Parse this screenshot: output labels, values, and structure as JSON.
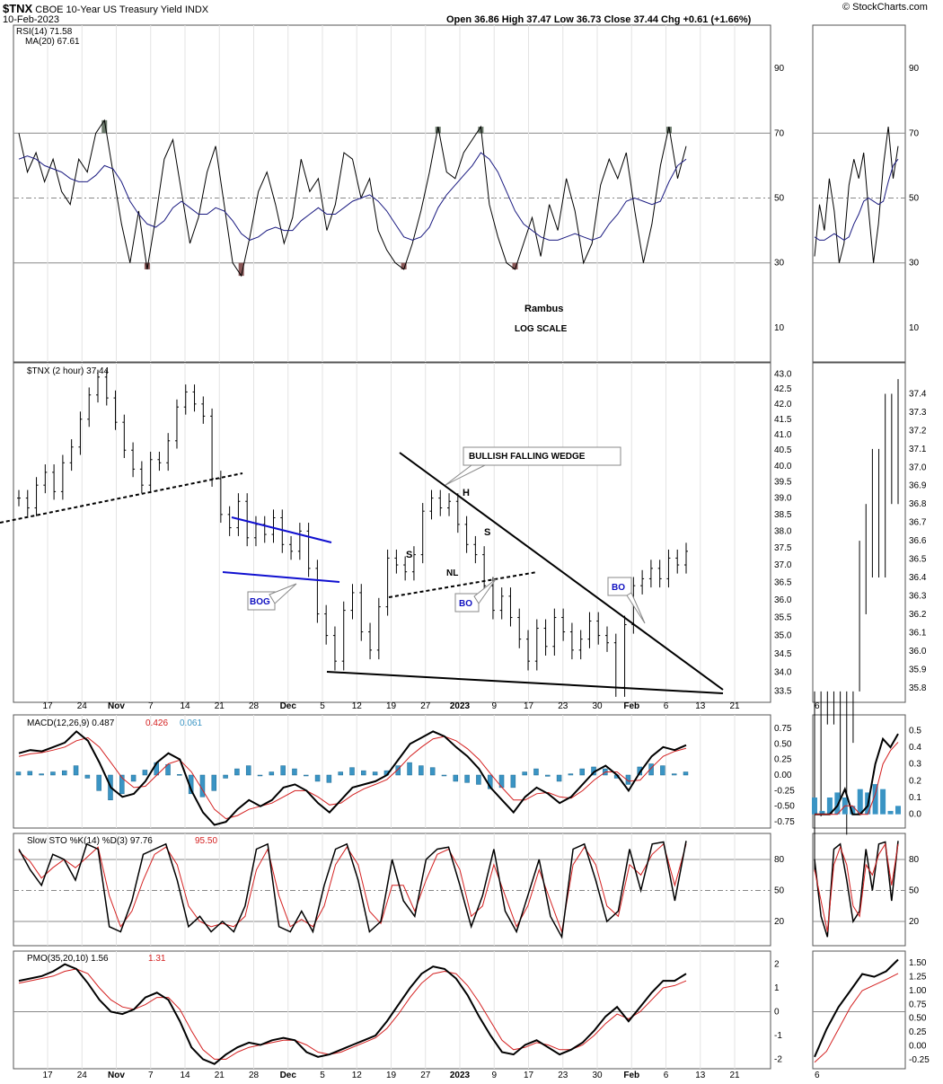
{
  "header": {
    "symbol": "$TNX",
    "name": "CBOE 10-Year US Treasury Yield",
    "exchange": "INDX",
    "date": "10-Feb-2023",
    "ohlc": "Open 36.86   High 37.47   Low 36.73   Close 37.44   Chg +0.61 (+1.66%)",
    "brand": "© StockCharts.com"
  },
  "annotations": {
    "author": "Rambus",
    "scale_note": "LOG SCALE",
    "wedge": "BULLISH FALLING WEDGE",
    "bog": "BOG",
    "bo1": "BO",
    "bo2": "BO",
    "head": "H",
    "shoulder_left": "S",
    "shoulder_right": "S",
    "neckline": "NL"
  },
  "colors": {
    "price": "#000000",
    "signal": "#d42020",
    "histogram": "#3a94c4",
    "ma_rsi": "#1a1a80",
    "channel": "#1010d0",
    "overbought_fill": "#6b7a6b",
    "oversold_fill": "#8a5858",
    "guide": "#888888"
  },
  "xaxis": {
    "labels": [
      "17",
      "24",
      "Nov",
      "7",
      "14",
      "21",
      "28",
      "Dec",
      "5",
      "12",
      "19",
      "27",
      "2023",
      "9",
      "17",
      "23",
      "30",
      "Feb",
      "6",
      "13",
      "21"
    ],
    "right_label": "6"
  },
  "chart_data": [
    {
      "type": "line",
      "title": "RSI(14) 71.58",
      "legend": [
        "RSI(14) 71.58",
        "MA(20) 67.61"
      ],
      "ylim": [
        0,
        100
      ],
      "yticks": [
        "90",
        "70",
        "50",
        "30",
        "10"
      ],
      "reference_lines": [
        70,
        50,
        30
      ],
      "series": [
        {
          "name": "RSI(14)",
          "values": [
            70,
            58,
            64,
            55,
            62,
            52,
            48,
            62,
            58,
            70,
            74,
            58,
            42,
            30,
            46,
            28,
            44,
            62,
            68,
            52,
            36,
            44,
            58,
            66,
            48,
            30,
            26,
            38,
            52,
            58,
            48,
            36,
            44,
            62,
            52,
            56,
            40,
            48,
            64,
            62,
            50,
            56,
            40,
            34,
            30,
            28,
            36,
            46,
            58,
            72,
            58,
            56,
            64,
            68,
            72,
            48,
            38,
            30,
            28,
            36,
            44,
            32,
            48,
            40,
            56,
            46,
            30,
            36,
            54,
            62,
            56,
            64,
            46,
            30,
            42,
            60,
            72,
            56,
            66
          ]
        },
        {
          "name": "MA(20)",
          "values": [
            62,
            63,
            62,
            60,
            59,
            58,
            56,
            55,
            55,
            57,
            60,
            59,
            55,
            49,
            45,
            42,
            41,
            43,
            47,
            49,
            47,
            45,
            45,
            47,
            46,
            43,
            39,
            37,
            38,
            40,
            41,
            40,
            40,
            43,
            45,
            47,
            45,
            45,
            47,
            49,
            50,
            51,
            49,
            46,
            42,
            38,
            37,
            38,
            41,
            47,
            51,
            54,
            57,
            60,
            64,
            62,
            58,
            52,
            46,
            42,
            40,
            38,
            37,
            37,
            38,
            39,
            38,
            37,
            38,
            42,
            45,
            49,
            50,
            49,
            48,
            49,
            55,
            60,
            62
          ]
        }
      ]
    },
    {
      "type": "line",
      "title": "$TNX (2 hour) 37.44",
      "legend": [
        "$TNX (2 hour) 37.44"
      ],
      "yscale": "log",
      "ylim": [
        33.3,
        43.2
      ],
      "yticks": [
        "43.0",
        "42.5",
        "42.0",
        "41.5",
        "41.0",
        "40.5",
        "40.0",
        "39.5",
        "39.0",
        "38.5",
        "38.0",
        "37.5",
        "37.0",
        "36.5",
        "36.0",
        "35.5",
        "35.0",
        "34.5",
        "34.0",
        "33.5"
      ],
      "right_yticks": [
        "37.4",
        "37.3",
        "37.2",
        "37.1",
        "37.0",
        "36.9",
        "36.8",
        "36.7",
        "36.6",
        "36.5",
        "36.4",
        "36.3",
        "36.2",
        "36.1",
        "36.0",
        "35.9",
        "35.8"
      ],
      "series": [
        {
          "name": "$TNX",
          "values": [
            39.0,
            38.7,
            39.4,
            39.8,
            39.2,
            40.1,
            40.6,
            41.5,
            42.3,
            42.9,
            42.2,
            41.4,
            40.5,
            39.9,
            39.4,
            40.2,
            40.1,
            40.8,
            41.9,
            42.4,
            42.0,
            41.6,
            39.6,
            38.5,
            38.1,
            38.9,
            37.8,
            38.2,
            37.9,
            38.4,
            37.6,
            37.4,
            38.0,
            36.9,
            35.6,
            35.0,
            34.3,
            35.7,
            36.2,
            35.1,
            34.6,
            35.8,
            37.2,
            37.0,
            36.8,
            37.3,
            38.6,
            39.0,
            38.7,
            38.9,
            38.2,
            37.6,
            37.3,
            36.4,
            35.7,
            36.1,
            35.5,
            34.9,
            34.3,
            35.2,
            34.7,
            35.5,
            35.1,
            34.6,
            34.9,
            35.4,
            35.0,
            34.8,
            33.6,
            35.3,
            36.4,
            36.6,
            36.9,
            36.6,
            37.2,
            37.0,
            37.4
          ]
        }
      ]
    },
    {
      "type": "line",
      "title": "MACD(12,26,9) 0.487, 0.426, 0.061",
      "legend": [
        "MACD(12,26,9) 0.487",
        "0.426",
        "0.061"
      ],
      "ylim": [
        -0.85,
        0.85
      ],
      "yticks": [
        "0.75",
        "0.50",
        "0.25",
        "0.00",
        "-0.25",
        "-0.50",
        "-0.75"
      ],
      "right_yticks": [
        "0.5",
        "0.4",
        "0.3",
        "0.2",
        "0.1",
        "0.0"
      ],
      "series": [
        {
          "name": "MACD",
          "values": [
            0.35,
            0.4,
            0.38,
            0.45,
            0.52,
            0.7,
            0.55,
            0.2,
            -0.2,
            -0.35,
            -0.3,
            -0.1,
            0.2,
            0.35,
            0.25,
            -0.25,
            -0.6,
            -0.8,
            -0.75,
            -0.55,
            -0.4,
            -0.5,
            -0.4,
            -0.2,
            -0.15,
            -0.25,
            -0.45,
            -0.6,
            -0.4,
            -0.2,
            -0.15,
            -0.1,
            0.0,
            0.25,
            0.5,
            0.6,
            0.7,
            0.62,
            0.45,
            0.3,
            0.1,
            -0.2,
            -0.4,
            -0.6,
            -0.35,
            -0.2,
            -0.3,
            -0.45,
            -0.35,
            -0.15,
            0.05,
            0.15,
            0.0,
            -0.25,
            0.05,
            0.3,
            0.45,
            0.4,
            0.48
          ]
        },
        {
          "name": "Signal",
          "values": [
            0.3,
            0.34,
            0.36,
            0.4,
            0.45,
            0.55,
            0.6,
            0.45,
            0.2,
            -0.05,
            -0.2,
            -0.18,
            0.0,
            0.18,
            0.24,
            0.05,
            -0.25,
            -0.55,
            -0.7,
            -0.65,
            -0.55,
            -0.5,
            -0.45,
            -0.35,
            -0.25,
            -0.25,
            -0.35,
            -0.48,
            -0.45,
            -0.32,
            -0.22,
            -0.15,
            -0.07,
            0.1,
            0.3,
            0.45,
            0.58,
            0.62,
            0.55,
            0.42,
            0.25,
            0.02,
            -0.2,
            -0.4,
            -0.4,
            -0.3,
            -0.28,
            -0.35,
            -0.37,
            -0.25,
            -0.08,
            0.05,
            0.05,
            -0.1,
            -0.08,
            0.12,
            0.3,
            0.38,
            0.43
          ]
        },
        {
          "name": "Histogram",
          "values": [
            0.05,
            0.06,
            0.02,
            0.05,
            0.07,
            0.15,
            -0.05,
            -0.25,
            -0.4,
            -0.3,
            -0.1,
            0.08,
            0.2,
            0.17,
            0.01,
            -0.3,
            -0.35,
            -0.25,
            -0.05,
            0.1,
            0.15,
            0.0,
            0.05,
            0.15,
            0.1,
            0.0,
            -0.1,
            -0.12,
            0.05,
            0.12,
            0.07,
            0.05,
            0.07,
            0.15,
            0.2,
            0.15,
            0.12,
            0.0,
            -0.1,
            -0.12,
            -0.15,
            -0.22,
            -0.2,
            -0.2,
            0.05,
            0.1,
            -0.02,
            -0.1,
            0.02,
            0.1,
            0.13,
            0.1,
            -0.05,
            -0.15,
            0.13,
            0.18,
            0.15,
            0.02,
            0.05
          ]
        }
      ]
    },
    {
      "type": "line",
      "title": "Slow STO %K(14) %D(3) 97.76, 95.50",
      "legend": [
        "Slow STO %K(14) %D(3) 97.76",
        "95.50"
      ],
      "ylim": [
        0,
        100
      ],
      "yticks": [
        "80",
        "50",
        "20"
      ],
      "reference_lines": [
        80,
        50,
        20
      ],
      "series": [
        {
          "name": "%K",
          "values": [
            90,
            70,
            55,
            85,
            80,
            60,
            95,
            90,
            15,
            10,
            40,
            85,
            90,
            95,
            60,
            15,
            25,
            10,
            20,
            10,
            35,
            90,
            95,
            15,
            10,
            30,
            10,
            55,
            90,
            95,
            60,
            10,
            20,
            80,
            40,
            25,
            80,
            90,
            92,
            55,
            15,
            45,
            90,
            30,
            10,
            45,
            80,
            25,
            5,
            90,
            95,
            60,
            20,
            30,
            90,
            50,
            95,
            97,
            40,
            98
          ]
        },
        {
          "name": "%D",
          "values": [
            88,
            78,
            62,
            72,
            80,
            72,
            82,
            92,
            45,
            15,
            30,
            60,
            85,
            92,
            75,
            35,
            20,
            15,
            18,
            15,
            25,
            70,
            90,
            45,
            15,
            22,
            15,
            35,
            75,
            92,
            75,
            30,
            18,
            55,
            55,
            30,
            60,
            85,
            90,
            70,
            25,
            35,
            75,
            45,
            15,
            35,
            70,
            40,
            10,
            75,
            92,
            75,
            35,
            25,
            75,
            65,
            85,
            95,
            55,
            95
          ]
        }
      ]
    },
    {
      "type": "line",
      "title": "PMO(35,20,10) 1.56, 1.31",
      "legend": [
        "PMO(35,20,10) 1.56",
        "1.31"
      ],
      "ylim": [
        -2.4,
        2.4
      ],
      "yticks": [
        "2",
        "1",
        "0",
        "-1",
        "-2"
      ],
      "right_yticks": [
        "1.50",
        "1.25",
        "1.00",
        "0.75",
        "0.50",
        "0.25",
        "0.00",
        "-0.25"
      ],
      "series": [
        {
          "name": "PMO",
          "values": [
            1.3,
            1.4,
            1.5,
            1.7,
            2.0,
            1.8,
            1.2,
            0.5,
            0.0,
            -0.1,
            0.1,
            0.6,
            0.8,
            0.5,
            -0.4,
            -1.5,
            -2.0,
            -2.2,
            -1.8,
            -1.5,
            -1.3,
            -1.4,
            -1.2,
            -1.1,
            -1.2,
            -1.7,
            -1.9,
            -1.8,
            -1.6,
            -1.4,
            -1.2,
            -1.0,
            -0.4,
            0.3,
            1.0,
            1.6,
            1.9,
            1.8,
            1.4,
            0.7,
            -0.2,
            -1.0,
            -1.7,
            -1.8,
            -1.4,
            -1.2,
            -1.5,
            -1.8,
            -1.6,
            -1.3,
            -0.8,
            -0.2,
            0.2,
            -0.4,
            0.2,
            0.8,
            1.3,
            1.3,
            1.6
          ]
        },
        {
          "name": "Signal",
          "values": [
            1.2,
            1.3,
            1.4,
            1.5,
            1.7,
            1.8,
            1.6,
            1.0,
            0.5,
            0.2,
            0.1,
            0.3,
            0.6,
            0.6,
            0.1,
            -0.8,
            -1.6,
            -2.0,
            -2.0,
            -1.7,
            -1.5,
            -1.4,
            -1.3,
            -1.2,
            -1.2,
            -1.4,
            -1.7,
            -1.8,
            -1.7,
            -1.5,
            -1.3,
            -1.1,
            -0.7,
            -0.1,
            0.6,
            1.2,
            1.6,
            1.7,
            1.6,
            1.1,
            0.4,
            -0.4,
            -1.2,
            -1.6,
            -1.5,
            -1.3,
            -1.4,
            -1.6,
            -1.6,
            -1.4,
            -1.0,
            -0.5,
            -0.1,
            -0.3,
            0.0,
            0.5,
            1.0,
            1.1,
            1.3
          ]
        }
      ]
    }
  ]
}
